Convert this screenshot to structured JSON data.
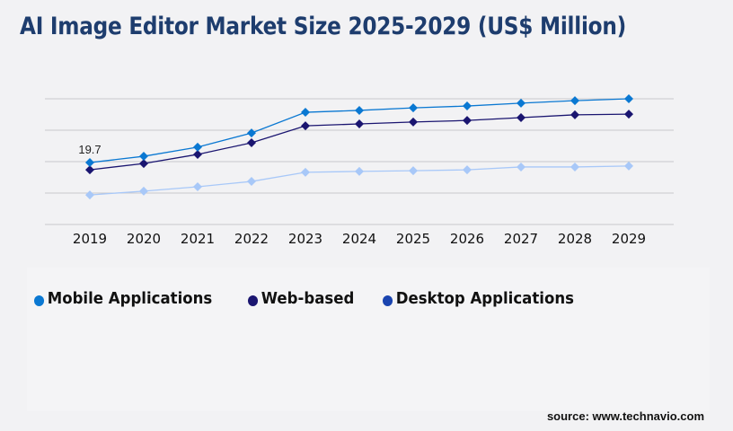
{
  "title": "AI Image Editor Market Size 2025-2029 (US$ Million)",
  "source": "source: www.technavio.com",
  "chart_data": {
    "type": "line",
    "title": "AI Image Editor Market Size 2025-2029 (US$ Million)",
    "categories": [
      "2019",
      "2020",
      "2021",
      "2022",
      "2023",
      "2024",
      "2025",
      "2026",
      "2027",
      "2028",
      "2029"
    ],
    "ylim": [
      0,
      40
    ],
    "grid": true,
    "legend_position": "bottom-left",
    "series": [
      {
        "name": "Mobile Applications",
        "color": "#0a78d2",
        "legend_color": "#0a78d2",
        "values": [
          19.7,
          21.7,
          24.6,
          29.1,
          35.7,
          36.3,
          37.1,
          37.7,
          38.6,
          39.4,
          40.0
        ]
      },
      {
        "name": "Web-based",
        "color": "#1a1570",
        "legend_color": "#1a1570",
        "values": [
          17.4,
          19.4,
          22.3,
          26.0,
          31.4,
          32.0,
          32.6,
          33.1,
          34.0,
          34.9,
          35.1
        ]
      },
      {
        "name": "Desktop Applications",
        "color": "#a8c8f8",
        "legend_color": "#1a44b0",
        "values": [
          9.4,
          10.6,
          12.0,
          13.7,
          16.6,
          16.9,
          17.1,
          17.4,
          18.3,
          18.3,
          18.6
        ]
      }
    ],
    "annotations": [
      {
        "series": "Mobile Applications",
        "category": "2019",
        "text": "19.7"
      }
    ]
  }
}
